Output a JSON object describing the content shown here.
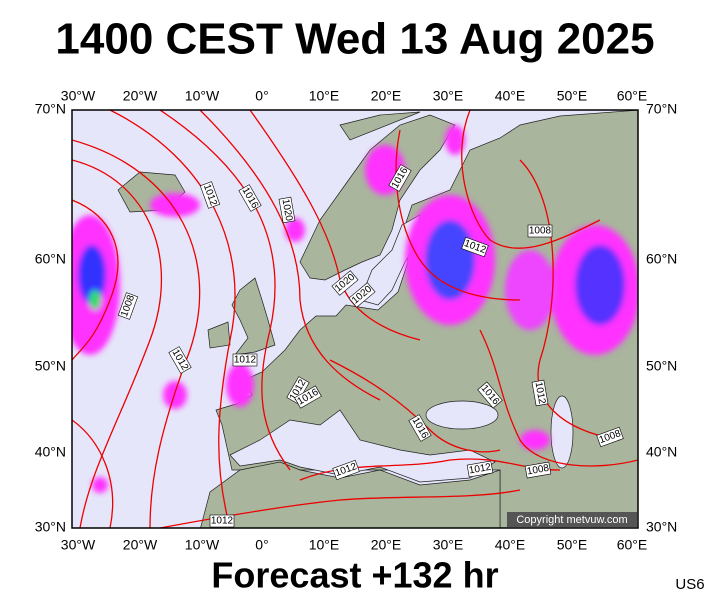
{
  "title": "1400 CEST Wed 13 Aug 2025",
  "longitude_labels": [
    "30°W",
    "20°W",
    "10°W",
    "0°",
    "10°E",
    "20°E",
    "30°E",
    "40°E",
    "50°E",
    "60°E"
  ],
  "latitude_labels": [
    "70°N",
    "60°N",
    "50°N",
    "40°N",
    "30°N"
  ],
  "isobar_labels": [
    "1012",
    "1016",
    "1020",
    "1016",
    "1012",
    "1008",
    "1008",
    "1012",
    "1012",
    "1020",
    "1020",
    "1012",
    "1016",
    "1016",
    "1012",
    "1016",
    "1008",
    "1012",
    "1012",
    "1008",
    "1012"
  ],
  "copyright": "Copyright metvuw.com",
  "footer": "Forecast +132 hr",
  "code": "US6"
}
